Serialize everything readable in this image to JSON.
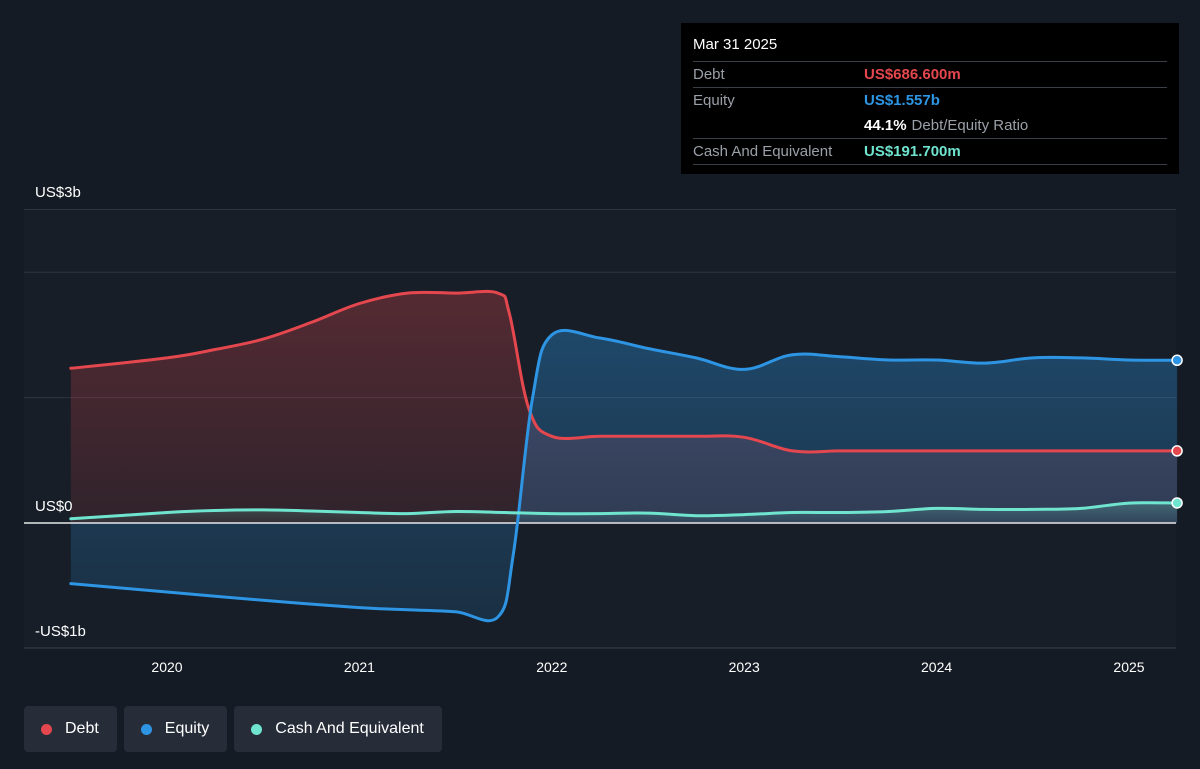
{
  "tooltip": {
    "date": "Mar 31 2025",
    "debt_label": "Debt",
    "debt_value": "US$686.600m",
    "equity_label": "Equity",
    "equity_value": "US$1.557b",
    "ratio_value": "44.1%",
    "ratio_label": "Debt/Equity Ratio",
    "cash_label": "Cash And Equivalent",
    "cash_value": "US$191.700m"
  },
  "legend": [
    {
      "label": "Debt",
      "color": "#e5474e"
    },
    {
      "label": "Equity",
      "color": "#2d95e3"
    },
    {
      "label": "Cash And Equivalent",
      "color": "#6fe4cf"
    }
  ],
  "chart_data": {
    "type": "area",
    "title": "",
    "xlabel": "",
    "ylabel": "",
    "y_tick_labels": [
      "US$3b",
      "US$0",
      "-US$1b"
    ],
    "x_tick_labels": [
      "2020",
      "2021",
      "2022",
      "2023",
      "2024",
      "2025"
    ],
    "ylim": [
      -1.0,
      3.0
    ],
    "x_range": [
      2019.5,
      2025.25
    ],
    "legend_position": "bottom-left",
    "grid": true,
    "series": [
      {
        "name": "Debt",
        "color": "#e5474e",
        "x": [
          2019.5,
          2020.0,
          2020.25,
          2020.5,
          2020.75,
          2021.0,
          2021.25,
          2021.5,
          2021.72,
          2021.78,
          2021.88,
          2022.0,
          2022.25,
          2022.5,
          2022.75,
          2023.0,
          2023.25,
          2023.5,
          2023.75,
          2024.0,
          2024.25,
          2024.5,
          2024.75,
          2025.0,
          2025.25
        ],
        "values": [
          1.48,
          1.58,
          1.66,
          1.76,
          1.92,
          2.1,
          2.2,
          2.2,
          2.2,
          2.0,
          1.1,
          0.83,
          0.83,
          0.83,
          0.83,
          0.82,
          0.69,
          0.69,
          0.69,
          0.69,
          0.69,
          0.69,
          0.69,
          0.69,
          0.69
        ]
      },
      {
        "name": "Equity",
        "color": "#2d95e3",
        "x": [
          2019.5,
          2020.0,
          2020.5,
          2021.0,
          2021.25,
          2021.5,
          2021.72,
          2021.8,
          2021.9,
          2022.0,
          2022.25,
          2022.5,
          2022.75,
          2023.0,
          2023.25,
          2023.5,
          2023.75,
          2024.0,
          2024.25,
          2024.5,
          2024.75,
          2025.0,
          2025.25
        ],
        "values": [
          -0.58,
          -0.66,
          -0.74,
          -0.81,
          -0.83,
          -0.85,
          -0.9,
          -0.3,
          1.2,
          1.8,
          1.77,
          1.67,
          1.58,
          1.47,
          1.61,
          1.59,
          1.56,
          1.56,
          1.53,
          1.58,
          1.58,
          1.56,
          1.557
        ]
      },
      {
        "name": "Cash And Equivalent",
        "color": "#6fe4cf",
        "x": [
          2019.5,
          2020.0,
          2020.25,
          2020.5,
          2020.75,
          2021.0,
          2021.25,
          2021.5,
          2021.75,
          2022.0,
          2022.25,
          2022.5,
          2022.75,
          2023.0,
          2023.25,
          2023.5,
          2023.75,
          2024.0,
          2024.25,
          2024.5,
          2024.75,
          2025.0,
          2025.25
        ],
        "values": [
          0.04,
          0.1,
          0.12,
          0.125,
          0.115,
          0.1,
          0.09,
          0.11,
          0.1,
          0.09,
          0.09,
          0.095,
          0.07,
          0.08,
          0.1,
          0.1,
          0.11,
          0.14,
          0.13,
          0.13,
          0.14,
          0.19,
          0.1917
        ]
      }
    ]
  }
}
